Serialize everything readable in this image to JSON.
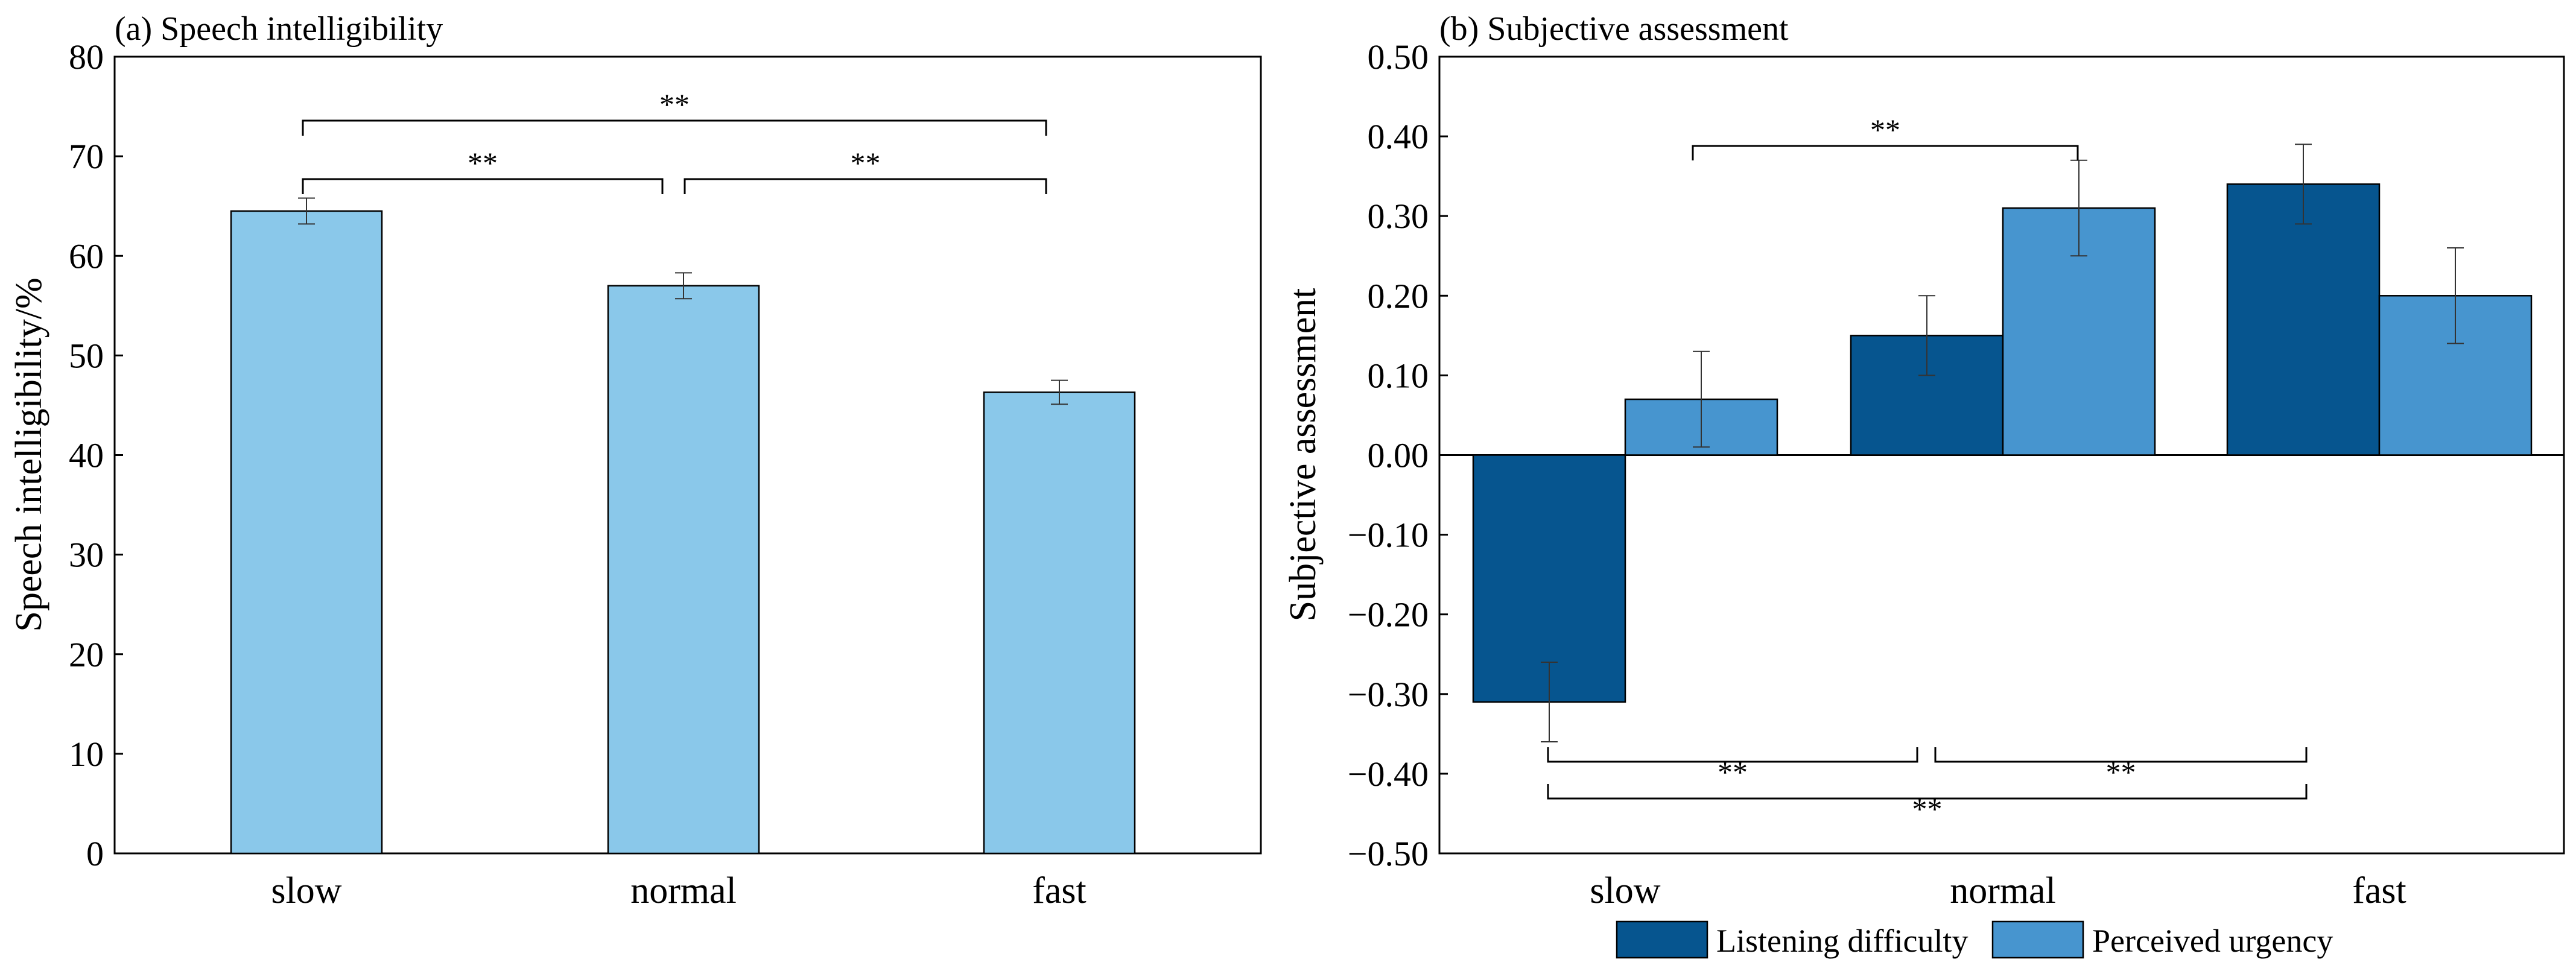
{
  "chart_data": [
    {
      "type": "bar",
      "title": "(a) Speech intelligibility",
      "ylabel": "Speech intelligibility/%",
      "xlabel": "",
      "categories": [
        "slow",
        "normal",
        "fast"
      ],
      "ylim": [
        0,
        80
      ],
      "yticks": [
        "0",
        "10",
        "20",
        "30",
        "40",
        "50",
        "60",
        "70",
        "80"
      ],
      "series": [
        {
          "name": "Speech intelligibility",
          "color": "#8ac8ea",
          "values": [
            64.5,
            57,
            46.3
          ],
          "errors": [
            1.3,
            1.3,
            1.2
          ]
        }
      ],
      "significance": [
        {
          "from": "slow",
          "to": "normal",
          "label": "**"
        },
        {
          "from": "normal",
          "to": "fast",
          "label": "**"
        },
        {
          "from": "slow",
          "to": "fast",
          "label": "**"
        }
      ]
    },
    {
      "type": "bar",
      "title": "(b) Subjective assessment",
      "ylabel": "Subjective assessment",
      "xlabel": "",
      "categories": [
        "slow",
        "normal",
        "fast"
      ],
      "ylim": [
        -0.5,
        0.5
      ],
      "yticks": [
        "−0.50",
        "−0.40",
        "−0.30",
        "−0.20",
        "−0.10",
        "0.00",
        "0.10",
        "0.20",
        "0.30",
        "0.40",
        "0.50"
      ],
      "series": [
        {
          "name": "Listening difficulty",
          "color": "#06558f",
          "values": [
            -0.31,
            0.15,
            0.34
          ],
          "errors": [
            0.05,
            0.05,
            0.05
          ]
        },
        {
          "name": "Perceived urgency",
          "color": "#4795cf",
          "values": [
            0.07,
            0.31,
            0.2
          ],
          "errors": [
            0.06,
            0.06,
            0.06
          ]
        }
      ],
      "significance": [
        {
          "series": "Perceived urgency",
          "from": "slow",
          "to": "normal",
          "label": "**"
        },
        {
          "series": "Listening difficulty",
          "from": "slow",
          "to": "normal",
          "label": "**"
        },
        {
          "series": "Listening difficulty",
          "from": "normal",
          "to": "fast",
          "label": "**"
        },
        {
          "series": "Listening difficulty",
          "from": "slow",
          "to": "fast",
          "label": "**"
        }
      ],
      "legend": {
        "position": "bottom",
        "entries": [
          "Listening difficulty",
          "Perceived urgency"
        ]
      }
    }
  ]
}
